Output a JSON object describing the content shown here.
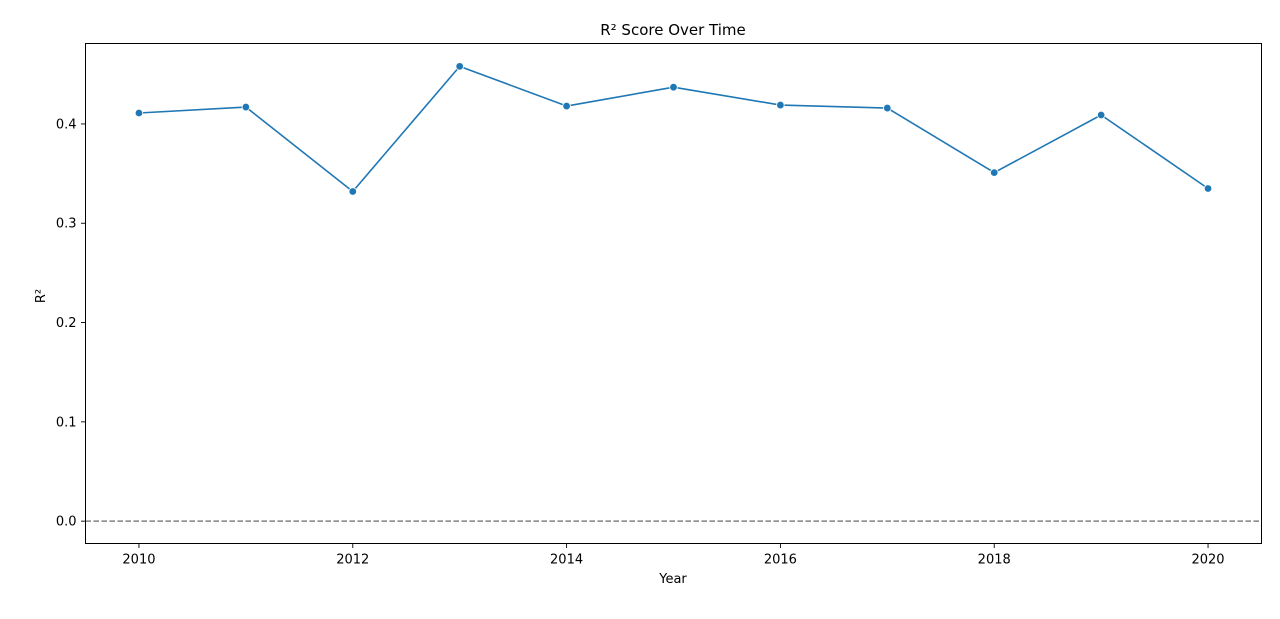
{
  "chart_data": {
    "type": "line",
    "title": "R² Score Over Time",
    "xlabel": "Year",
    "ylabel": "R²",
    "xlim": [
      2009.5,
      2020.5
    ],
    "ylim": [
      -0.0225,
      0.481
    ],
    "xticks": [
      2010,
      2012,
      2014,
      2016,
      2018,
      2020
    ],
    "yticks": [
      0.0,
      0.1,
      0.2,
      0.3,
      0.4
    ],
    "xtick_labels": [
      "2010",
      "2012",
      "2014",
      "2016",
      "2018",
      "2020"
    ],
    "ytick_labels": [
      "0.0",
      "0.1",
      "0.2",
      "0.3",
      "0.4"
    ],
    "grid": false,
    "reference_line": {
      "y": 0.0,
      "style": "dashed",
      "color": "#808080"
    },
    "series": [
      {
        "name": "R²",
        "color": "#1f77b4",
        "marker": "circle",
        "x": [
          2010,
          2011,
          2012,
          2013,
          2014,
          2015,
          2016,
          2017,
          2018,
          2019,
          2020
        ],
        "values": [
          0.411,
          0.417,
          0.332,
          0.458,
          0.418,
          0.437,
          0.419,
          0.416,
          0.351,
          0.409,
          0.335
        ]
      }
    ]
  }
}
